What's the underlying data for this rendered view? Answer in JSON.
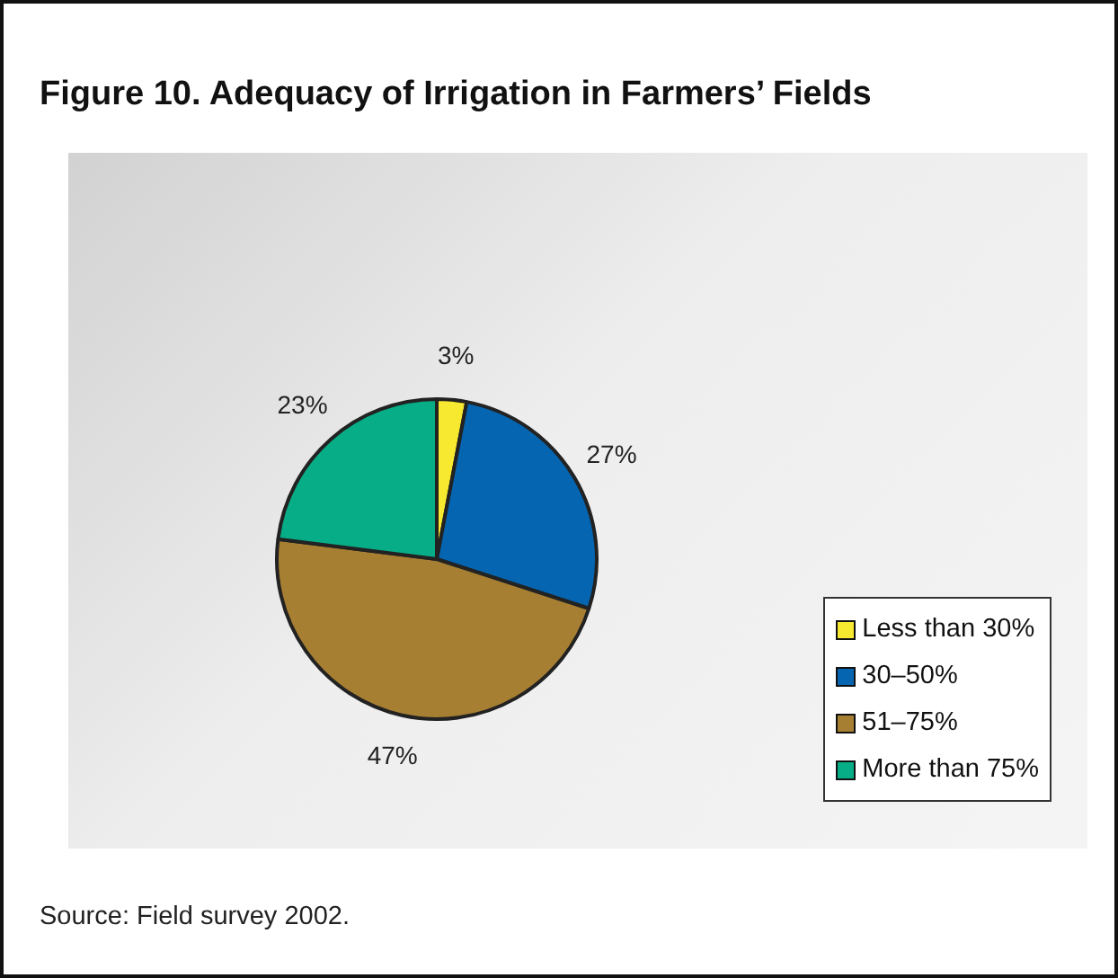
{
  "chart_data": {
    "type": "pie",
    "title": "Figure 10. Adequacy of Irrigation in Farmers’ Fields",
    "categories": [
      "Less than 30%",
      "30–50%",
      "51–75%",
      "More than 75%"
    ],
    "values": [
      3,
      27,
      47,
      23
    ],
    "colors": [
      "#f7e930",
      "#0565b0",
      "#a67f32",
      "#07ad86"
    ],
    "value_labels": [
      "3%",
      "27%",
      "47%",
      "23%"
    ],
    "legend": "bottom right",
    "annotations": [
      "Source: Field survey 2002."
    ]
  }
}
